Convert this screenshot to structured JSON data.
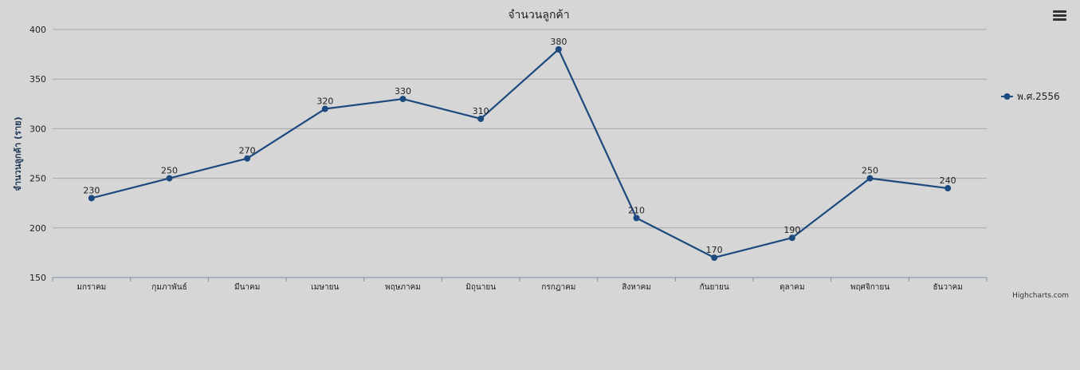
{
  "credits": "Highcharts.com",
  "menu_icon": "hamburger-menu-icon",
  "colors": {
    "series": "#1c4a7e",
    "background": "#d6d6d6",
    "grid": "#a5a5a5",
    "axis": "#7d8fa3",
    "text": "#222222"
  },
  "chart_data": {
    "type": "line",
    "title": "จำนวนลูกค้า",
    "xlabel": "",
    "ylabel": "จำนวนลูกค้า (ราย)",
    "ylim": [
      150,
      400
    ],
    "yticks": [
      150,
      200,
      250,
      300,
      350,
      400
    ],
    "grid": true,
    "legend_position": "right",
    "categories": [
      "มกราคม",
      "กุมภาพันธ์",
      "มีนาคม",
      "เมษายน",
      "พฤษภาคม",
      "มิถุนายน",
      "กรกฎาคม",
      "สิงหาคม",
      "กันยายน",
      "ตุลาคม",
      "พฤศจิกายน",
      "ธันวาคม"
    ],
    "series": [
      {
        "name": "พ.ศ.2556",
        "values": [
          230,
          250,
          270,
          320,
          330,
          310,
          380,
          210,
          170,
          190,
          250,
          240
        ]
      }
    ]
  }
}
